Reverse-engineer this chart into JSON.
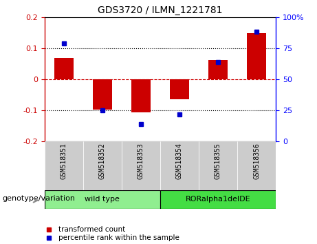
{
  "title": "GDS3720 / ILMN_1221781",
  "categories": [
    "GSM518351",
    "GSM518352",
    "GSM518353",
    "GSM518354",
    "GSM518355",
    "GSM518356"
  ],
  "bar_values": [
    0.068,
    -0.098,
    -0.107,
    -0.065,
    0.063,
    0.148
  ],
  "dot_values": [
    79,
    25,
    14,
    22,
    64,
    88
  ],
  "ylim_left": [
    -0.2,
    0.2
  ],
  "ylim_right": [
    0,
    100
  ],
  "left_yticks": [
    -0.2,
    -0.1,
    0.0,
    0.1,
    0.2
  ],
  "right_yticks": [
    0,
    25,
    50,
    75,
    100
  ],
  "bar_color": "#cc0000",
  "dot_color": "#0000cc",
  "hline_zero_color": "#cc0000",
  "hline_0p1_color": "black",
  "group1_label": "wild type",
  "group2_label": "RORalpha1delDE",
  "group1_color": "#90ee90",
  "group2_color": "#44dd44",
  "genotype_label": "genotype/variation",
  "legend_bar_label": "transformed count",
  "legend_dot_label": "percentile rank within the sample",
  "label_area_bg": "#cccccc",
  "title_fontsize": 10,
  "tick_fontsize": 8,
  "category_fontsize": 7,
  "group_fontsize": 8,
  "legend_fontsize": 7.5,
  "geno_fontsize": 8
}
